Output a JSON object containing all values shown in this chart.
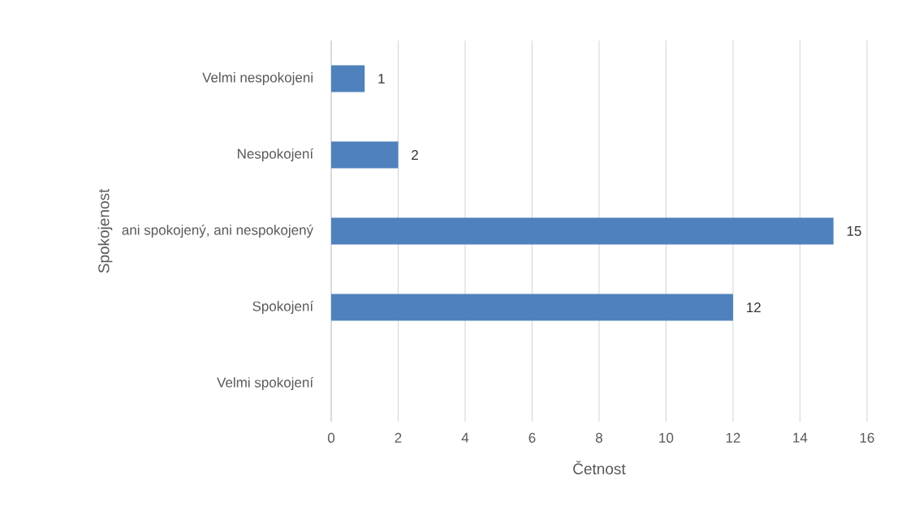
{
  "chart_data": {
    "type": "bar",
    "orientation": "horizontal",
    "categories": [
      "Velmi nespokojeni",
      "Nespokojení",
      "ani spokojený, ani nespokojený",
      "Spokojení",
      "Velmi spokojení"
    ],
    "values": [
      1,
      2,
      15,
      12,
      null
    ],
    "color": "#4f81bd",
    "xlabel": "Četnost",
    "ylabel": "Spokojenost",
    "xlim": [
      0,
      16
    ],
    "xticks": [
      0,
      2,
      4,
      6,
      8,
      10,
      12,
      14,
      16
    ],
    "grid": "x",
    "data_labels": true
  }
}
